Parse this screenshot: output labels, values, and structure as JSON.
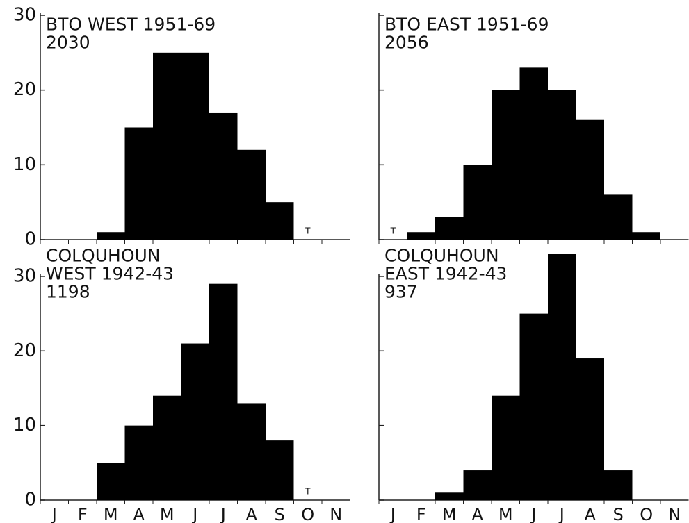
{
  "chart_data": [
    {
      "type": "bar",
      "title_lines": [
        "BTO  WEST 1951-69",
        "2030"
      ],
      "categories": [
        null,
        null,
        null,
        null,
        null,
        null,
        null,
        null,
        null,
        null,
        null
      ],
      "values": [
        null,
        null,
        1,
        15,
        25,
        25,
        17,
        12,
        5,
        0,
        null
      ],
      "value_labels": [
        null,
        null,
        null,
        null,
        null,
        null,
        null,
        null,
        null,
        "T",
        null
      ],
      "color": "#000000",
      "ylim": [
        0,
        30
      ],
      "yticks": [
        0,
        10,
        20,
        30
      ],
      "tick_labels": true
    },
    {
      "type": "bar",
      "title_lines": [
        "BTO EAST 1951-69",
        "2056"
      ],
      "categories": [
        null,
        null,
        null,
        null,
        null,
        null,
        null,
        null,
        null,
        null,
        null
      ],
      "values": [
        0,
        1,
        3,
        10,
        20,
        23,
        20,
        16,
        6,
        1,
        null
      ],
      "value_labels": [
        "T",
        null,
        null,
        null,
        null,
        null,
        null,
        null,
        null,
        null,
        null
      ],
      "color": "#000000",
      "ylim": [
        0,
        30
      ],
      "yticks": [
        0,
        10,
        20,
        30
      ],
      "tick_labels": false
    },
    {
      "type": "bar",
      "title_lines": [
        "COLQUHOUN",
        "WEST 1942-43",
        "1198"
      ],
      "categories": [
        "J",
        "F",
        "M",
        "A",
        "M",
        "J",
        "J",
        "A",
        "S",
        "O",
        "N"
      ],
      "values": [
        null,
        null,
        5,
        10,
        14,
        21,
        29,
        13,
        8,
        0,
        null
      ],
      "value_labels": [
        null,
        null,
        null,
        null,
        null,
        null,
        null,
        null,
        null,
        "T",
        null
      ],
      "color": "#000000",
      "ylim": [
        0,
        34
      ],
      "yticks": [
        0,
        10,
        20,
        30
      ],
      "tick_labels": true
    },
    {
      "type": "bar",
      "title_lines": [
        "COLQUHOUN",
        "EAST 1942-43",
        "937"
      ],
      "categories": [
        "J",
        "F",
        "M",
        "A",
        "M",
        "J",
        "J",
        "A",
        "S",
        "O",
        "N"
      ],
      "values": [
        null,
        null,
        1,
        4,
        14,
        25,
        33,
        19,
        4,
        null,
        null
      ],
      "color": "#000000",
      "ylim": [
        0,
        34
      ],
      "yticks": [
        0,
        10,
        20,
        30
      ],
      "tick_labels": false
    }
  ]
}
